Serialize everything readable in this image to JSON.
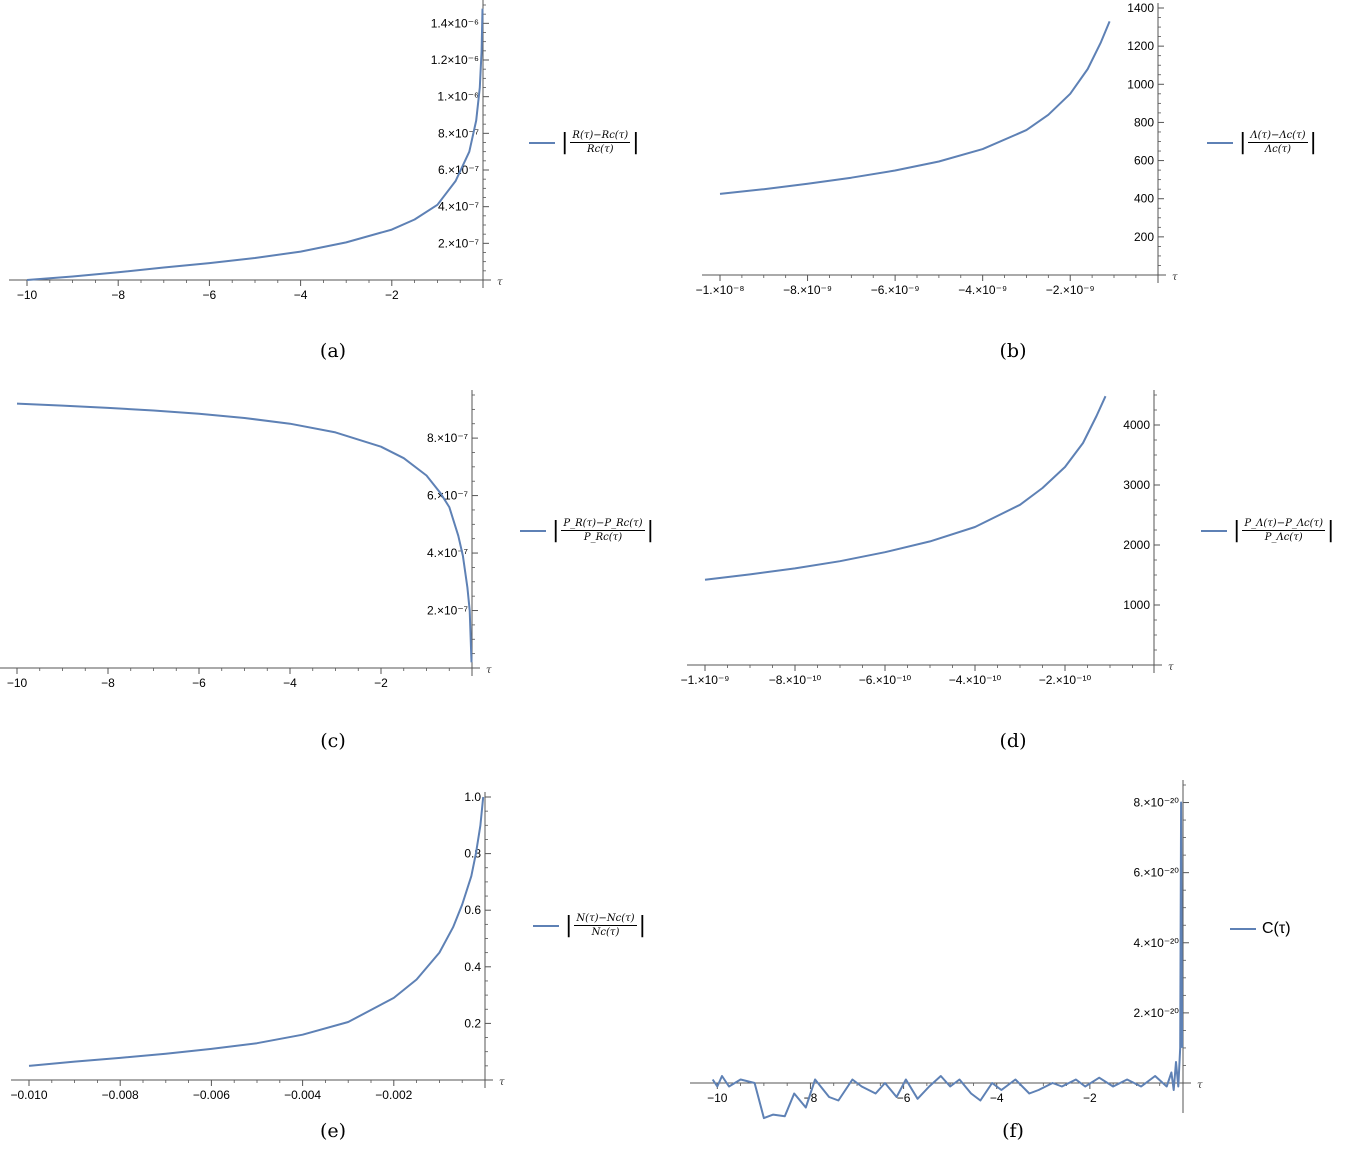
{
  "series_color": "#5e81b5",
  "chart_data": [
    {
      "id": "a",
      "type": "line",
      "caption": "(a)",
      "xlabel": "τ",
      "legend": {
        "num": "R(τ)−Rc(τ)",
        "den": "Rc(τ)"
      },
      "xlim": [
        -10,
        0
      ],
      "ylim": [
        0,
        1.5e-06
      ],
      "x_ticks": [
        "−10",
        "−8",
        "−6",
        "−4",
        "−2"
      ],
      "y_ticks": [
        "2.×10⁻⁷",
        "4.×10⁻⁷",
        "6.×10⁻⁷",
        "8.×10⁻⁷",
        "1.×10⁻⁶",
        "1.2×10⁻⁶",
        "1.4×10⁻⁶"
      ],
      "x": [
        -10,
        -9,
        -8,
        -7,
        -6,
        -5,
        -4,
        -3,
        -2,
        -1.5,
        -1,
        -0.6,
        -0.3,
        -0.15,
        -0.07,
        -0.03,
        -0.01
      ],
      "y": [
        0,
        1.9e-08,
        4.2e-08,
        6.8e-08,
        9.2e-08,
        1.2e-07,
        1.55e-07,
        2.05e-07,
        2.75e-07,
        3.3e-07,
        4.1e-07,
        5.4e-07,
        7e-07,
        8.7e-07,
        1.05e-06,
        1.25e-06,
        1.48e-06
      ]
    },
    {
      "id": "b",
      "type": "line",
      "caption": "(b)",
      "xlabel": "τ",
      "legend": {
        "num": "Λ(τ)−Λc(τ)",
        "den": "Λc(τ)"
      },
      "xlim": [
        -1e-08,
        -1e-09
      ],
      "ylim": [
        0,
        1400
      ],
      "x_ticks": [
        "−1.×10⁻⁸",
        "−8.×10⁻⁹",
        "−6.×10⁻⁹",
        "−4.×10⁻⁹",
        "−2.×10⁻⁹"
      ],
      "y_ticks": [
        "200",
        "400",
        "600",
        "800",
        "1000",
        "1200",
        "1400"
      ],
      "x": [
        -1e-08,
        -9e-09,
        -8e-09,
        -7e-09,
        -6e-09,
        -5e-09,
        -4e-09,
        -3e-09,
        -2.5e-09,
        -2e-09,
        -1.6e-09,
        -1.3e-09,
        -1.1e-09
      ],
      "y": [
        425,
        450,
        478,
        510,
        548,
        595,
        660,
        760,
        840,
        950,
        1080,
        1220,
        1330
      ]
    },
    {
      "id": "c",
      "type": "line",
      "caption": "(c)",
      "xlabel": "τ",
      "legend": {
        "num": "P_R(τ)−P_Rc(τ)",
        "den": "P_Rc(τ)"
      },
      "xlim": [
        -10,
        0
      ],
      "ylim": [
        0,
        9.5e-07
      ],
      "x_ticks": [
        "−10",
        "−8",
        "−6",
        "−4",
        "−2"
      ],
      "y_ticks": [
        "2.×10⁻⁷",
        "4.×10⁻⁷",
        "6.×10⁻⁷",
        "8.×10⁻⁷"
      ],
      "x": [
        -10,
        -9,
        -8,
        -7,
        -6,
        -5,
        -4,
        -3,
        -2,
        -1.5,
        -1,
        -0.7,
        -0.5,
        -0.3,
        -0.2,
        -0.1,
        -0.05,
        -0.01
      ],
      "y": [
        9.2e-07,
        9.13e-07,
        9.05e-07,
        8.96e-07,
        8.85e-07,
        8.7e-07,
        8.5e-07,
        8.2e-07,
        7.7e-07,
        7.3e-07,
        6.7e-07,
        6.1e-07,
        5.6e-07,
        4.6e-07,
        3.9e-07,
        2.8e-07,
        2e-07,
        2e-08
      ]
    },
    {
      "id": "d",
      "type": "line",
      "caption": "(d)",
      "xlabel": "τ",
      "legend": {
        "num": "P_Λ(τ)−P_Λc(τ)",
        "den": "P_Λc(τ)"
      },
      "xlim": [
        -1e-09,
        -1e-10
      ],
      "ylim": [
        0,
        4500
      ],
      "x_ticks": [
        "−1.×10⁻⁹",
        "−8.×10⁻¹⁰",
        "−6.×10⁻¹⁰",
        "−4.×10⁻¹⁰",
        "−2.×10⁻¹⁰"
      ],
      "y_ticks": [
        "1000",
        "2000",
        "3000",
        "4000"
      ],
      "x": [
        -1e-09,
        -9e-10,
        -8e-10,
        -7e-10,
        -6e-10,
        -5e-10,
        -4e-10,
        -3e-10,
        -2.5e-10,
        -2e-10,
        -1.6e-10,
        -1.3e-10,
        -1.1e-10
      ],
      "y": [
        1420,
        1510,
        1610,
        1730,
        1880,
        2060,
        2300,
        2670,
        2950,
        3300,
        3700,
        4150,
        4480
      ]
    },
    {
      "id": "e",
      "type": "line",
      "caption": "(e)",
      "xlabel": "τ",
      "legend": {
        "num": "N(τ)−Nc(τ)",
        "den": "Nc(τ)"
      },
      "xlim": [
        -0.01,
        0
      ],
      "ylim": [
        0,
        1.0
      ],
      "x_ticks": [
        "−0.010",
        "−0.008",
        "−0.006",
        "−0.004",
        "−0.002"
      ],
      "y_ticks": [
        "0.2",
        "0.4",
        "0.6",
        "0.8",
        "1.0"
      ],
      "x": [
        -0.01,
        -0.009,
        -0.008,
        -0.007,
        -0.006,
        -0.005,
        -0.004,
        -0.003,
        -0.002,
        -0.0015,
        -0.001,
        -0.0007,
        -0.0005,
        -0.0003,
        -0.0002,
        -0.0001,
        -4e-05
      ],
      "y": [
        0.05,
        0.065,
        0.078,
        0.093,
        0.11,
        0.13,
        0.16,
        0.205,
        0.29,
        0.355,
        0.45,
        0.54,
        0.62,
        0.72,
        0.8,
        0.9,
        1.0
      ]
    },
    {
      "id": "f",
      "type": "line",
      "caption": "(f)",
      "xlabel": "τ",
      "legend_text": "C(τ)",
      "xlim": [
        -10.2,
        0
      ],
      "ylim": [
        -1.7e-20,
        8.5e-20
      ],
      "x_ticks": [
        "−10",
        "−8",
        "−6",
        "−4",
        "−2"
      ],
      "y_ticks": [
        "2.×10⁻²⁰",
        "4.×10⁻²⁰",
        "6.×10⁻²⁰",
        "8.×10⁻²⁰"
      ],
      "x": [
        -10.1,
        -10.0,
        -9.9,
        -9.75,
        -9.5,
        -9.2,
        -9.0,
        -8.8,
        -8.55,
        -8.35,
        -8.1,
        -7.9,
        -7.6,
        -7.4,
        -7.1,
        -6.9,
        -6.6,
        -6.4,
        -6.15,
        -5.95,
        -5.7,
        -5.45,
        -5.2,
        -5.0,
        -4.8,
        -4.55,
        -4.35,
        -4.1,
        -3.9,
        -3.6,
        -3.3,
        -3.1,
        -2.8,
        -2.6,
        -2.3,
        -2.1,
        -1.8,
        -1.5,
        -1.2,
        -0.9,
        -0.6,
        -0.35,
        -0.25,
        -0.2,
        -0.15,
        -0.1,
        -0.06,
        -0.04,
        -0.02
      ],
      "y": [
        1e-21,
        -1e-21,
        2e-21,
        -1e-21,
        1e-21,
        0,
        -1e-20,
        -9e-21,
        -9.5e-21,
        -3e-21,
        -7e-21,
        1e-21,
        -4e-21,
        -5e-21,
        1e-21,
        -1e-21,
        -3e-21,
        0,
        -4e-21,
        1e-21,
        -4.5e-21,
        -1e-21,
        2e-21,
        -1e-21,
        1e-21,
        -3e-21,
        -5e-21,
        0,
        -2e-21,
        1e-21,
        -3e-21,
        -2e-21,
        0,
        -1e-21,
        1e-21,
        -1e-21,
        1.5e-21,
        -1e-21,
        1e-21,
        -1e-21,
        2e-21,
        -1e-21,
        3e-21,
        -2e-21,
        6e-21,
        -1e-21,
        1e-20,
        8e-20,
        1e-20
      ]
    }
  ]
}
